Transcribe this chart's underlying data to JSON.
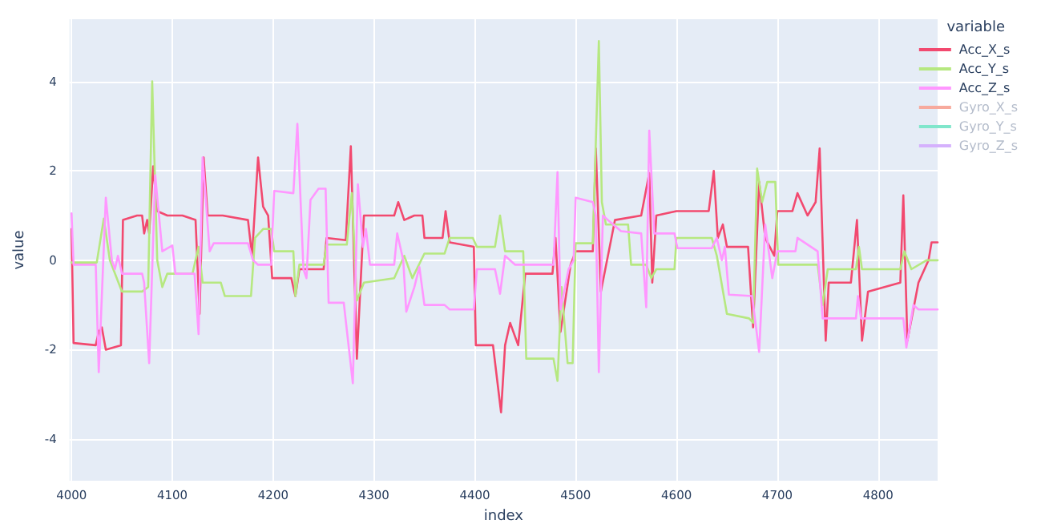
{
  "chart_data": {
    "type": "line",
    "xlabel": "index",
    "ylabel": "value",
    "legend_title": "variable",
    "legend": "right",
    "grid": true,
    "marker": "none",
    "line_style": "solid",
    "xlim": [
      3998,
      4859
    ],
    "xticks": [
      4000,
      4100,
      4200,
      4300,
      4400,
      4500,
      4600,
      4700,
      4800
    ],
    "ylim": [
      -4.93,
      5.39
    ],
    "yticks": [
      -4,
      -2,
      0,
      2,
      4
    ],
    "series": [
      {
        "name": "Acc_X_s",
        "color": "#f2496f",
        "x": [
          4000,
          4002,
          4024,
          4027,
          4030,
          4034,
          4049,
          4051,
          4065,
          4070,
          4072,
          4075,
          4077,
          4081,
          4085,
          4095,
          4110,
          4123,
          4127,
          4131,
          4135,
          4150,
          4175,
          4179,
          4185,
          4190,
          4195,
          4199,
          4218,
          4222,
          4226,
          4250,
          4253,
          4272,
          4277,
          4283,
          4290,
          4320,
          4324,
          4330,
          4340,
          4348,
          4350,
          4368,
          4371,
          4375,
          4399,
          4401,
          4418,
          4426,
          4430,
          4435,
          4443,
          4450,
          4477,
          4480,
          4485,
          4495,
          4500,
          4517,
          4520,
          4525,
          4539,
          4565,
          4573,
          4576,
          4580,
          4600,
          4632,
          4637,
          4641,
          4646,
          4650,
          4671,
          4676,
          4682,
          4688,
          4697,
          4700,
          4715,
          4720,
          4730,
          4738,
          4742,
          4748,
          4751,
          4773,
          4779,
          4784,
          4790,
          4822,
          4825,
          4829,
          4840,
          4850,
          4853,
          4859
        ],
        "values": [
          0.7,
          -1.85,
          -1.9,
          -1.6,
          -1.5,
          -2.0,
          -1.9,
          0.9,
          1.0,
          1.0,
          0.6,
          0.9,
          0.6,
          2.1,
          1.1,
          1.0,
          1.0,
          0.9,
          -1.2,
          2.3,
          1.0,
          1.0,
          0.9,
          0.1,
          2.3,
          1.2,
          1.0,
          -0.4,
          -0.4,
          -0.8,
          -0.2,
          -0.2,
          0.5,
          0.45,
          2.55,
          -2.2,
          1.0,
          1.0,
          1.3,
          0.9,
          1.0,
          1.0,
          0.5,
          0.5,
          1.1,
          0.4,
          0.3,
          -1.9,
          -1.9,
          -3.4,
          -1.9,
          -1.4,
          -1.9,
          -0.3,
          -0.3,
          0.5,
          -1.6,
          -0.1,
          0.2,
          0.2,
          2.5,
          -0.7,
          0.9,
          1.0,
          1.95,
          -0.5,
          1.0,
          1.1,
          1.1,
          2.0,
          0.5,
          0.8,
          0.3,
          0.3,
          -1.5,
          1.75,
          0.5,
          0.1,
          1.1,
          1.1,
          1.5,
          1.0,
          1.3,
          2.5,
          -1.8,
          -0.5,
          -0.5,
          0.9,
          -1.8,
          -0.7,
          -0.5,
          1.45,
          -1.8,
          -0.5,
          0.0,
          0.4,
          0.4
        ]
      },
      {
        "name": "Acc_Y_s",
        "color": "#b6e880",
        "x": [
          4000,
          4025,
          4032,
          4038,
          4050,
          4070,
          4076,
          4080,
          4085,
          4090,
          4095,
          4120,
          4126,
          4130,
          4148,
          4152,
          4178,
          4182,
          4190,
          4198,
          4201,
          4220,
          4222,
          4226,
          4250,
          4253,
          4273,
          4278,
          4283,
          4290,
          4320,
          4330,
          4338,
          4350,
          4370,
          4375,
          4398,
          4402,
          4420,
          4425,
          4430,
          4448,
          4451,
          4478,
          4482,
          4486,
          4492,
          4497,
          4500,
          4517,
          4523,
          4526,
          4530,
          4552,
          4555,
          4570,
          4575,
          4580,
          4598,
          4600,
          4635,
          4640,
          4650,
          4672,
          4676,
          4680,
          4685,
          4690,
          4698,
          4701,
          4740,
          4745,
          4750,
          4778,
          4781,
          4784,
          4822,
          4826,
          4833,
          4848,
          4859
        ],
        "values": [
          -0.05,
          -0.05,
          0.93,
          0.0,
          -0.7,
          -0.7,
          -0.6,
          4.0,
          0.0,
          -0.6,
          -0.3,
          -0.3,
          0.3,
          -0.5,
          -0.5,
          -0.8,
          -0.8,
          0.5,
          0.7,
          0.7,
          0.2,
          0.2,
          -0.8,
          -0.1,
          -0.1,
          0.35,
          0.35,
          1.5,
          -0.9,
          -0.5,
          -0.4,
          0.1,
          -0.4,
          0.15,
          0.15,
          0.5,
          0.5,
          0.3,
          0.3,
          1.0,
          0.2,
          0.2,
          -2.2,
          -2.2,
          -2.7,
          -0.6,
          -2.3,
          -2.3,
          0.38,
          0.38,
          4.9,
          1.3,
          0.8,
          0.8,
          -0.1,
          -0.1,
          -0.4,
          -0.2,
          -0.2,
          0.5,
          0.5,
          0.1,
          -1.2,
          -1.3,
          -1.4,
          2.05,
          1.3,
          1.75,
          1.75,
          -0.1,
          -0.1,
          -1.0,
          -0.2,
          -0.2,
          0.3,
          -0.2,
          -0.2,
          0.2,
          -0.2,
          0.0,
          0.0
        ]
      },
      {
        "name": "Acc_Z_s",
        "color": "#ff97ff",
        "x": [
          4000,
          4002,
          4024,
          4027,
          4034,
          4040,
          4043,
          4046,
          4050,
          4070,
          4072,
          4077,
          4083,
          4090,
          4100,
          4103,
          4122,
          4126,
          4130,
          4137,
          4141,
          4175,
          4180,
          4185,
          4198,
          4201,
          4220,
          4224,
          4230,
          4233,
          4237,
          4245,
          4252,
          4255,
          4270,
          4279,
          4284,
          4289,
          4292,
          4296,
          4320,
          4323,
          4329,
          4332,
          4340,
          4345,
          4350,
          4370,
          4375,
          4399,
          4402,
          4420,
          4425,
          4430,
          4440,
          4478,
          4482,
          4485,
          4493,
          4498,
          4500,
          4517,
          4520,
          4523,
          4527,
          4532,
          4545,
          4565,
          4570,
          4573,
          4578,
          4598,
          4601,
          4635,
          4640,
          4645,
          4648,
          4652,
          4675,
          4682,
          4688,
          4695,
          4700,
          4718,
          4720,
          4740,
          4745,
          4778,
          4780,
          4783,
          4825,
          4828,
          4835,
          4840,
          4859
        ],
        "values": [
          1.05,
          -0.1,
          -0.1,
          -2.5,
          1.4,
          0.0,
          -0.2,
          0.1,
          -0.3,
          -0.3,
          -0.5,
          -2.3,
          1.9,
          0.2,
          0.33,
          -0.3,
          -0.3,
          -1.65,
          2.3,
          0.2,
          0.38,
          0.38,
          0.0,
          -0.1,
          -0.1,
          1.55,
          1.5,
          3.05,
          -0.2,
          -0.4,
          1.35,
          1.6,
          1.6,
          -0.95,
          -0.95,
          -2.75,
          1.7,
          0.3,
          0.7,
          -0.1,
          -0.1,
          0.6,
          0.0,
          -1.15,
          -0.6,
          -0.15,
          -1.0,
          -1.0,
          -1.1,
          -1.1,
          -0.2,
          -0.2,
          -0.75,
          0.1,
          -0.1,
          -0.1,
          1.97,
          -1.1,
          -0.2,
          0.0,
          1.4,
          1.3,
          1.0,
          -2.5,
          1.0,
          0.9,
          0.65,
          0.6,
          -1.05,
          2.9,
          0.6,
          0.6,
          0.27,
          0.27,
          0.5,
          0.0,
          0.3,
          -0.77,
          -0.8,
          -2.05,
          0.8,
          -0.4,
          0.2,
          0.2,
          0.5,
          0.2,
          -1.3,
          -1.3,
          -0.8,
          -1.3,
          -1.3,
          -1.95,
          -1.0,
          -1.1,
          -1.1
        ]
      },
      {
        "name": "Gyro_X_s",
        "color": "#f7aa9d",
        "values": [
          null
        ]
      },
      {
        "name": "Gyro_Y_s",
        "color": "#80e6cb",
        "values": [
          null
        ]
      },
      {
        "name": "Gyro_Z_s",
        "color": "#d5b1fd",
        "values": [
          null
        ]
      }
    ]
  }
}
